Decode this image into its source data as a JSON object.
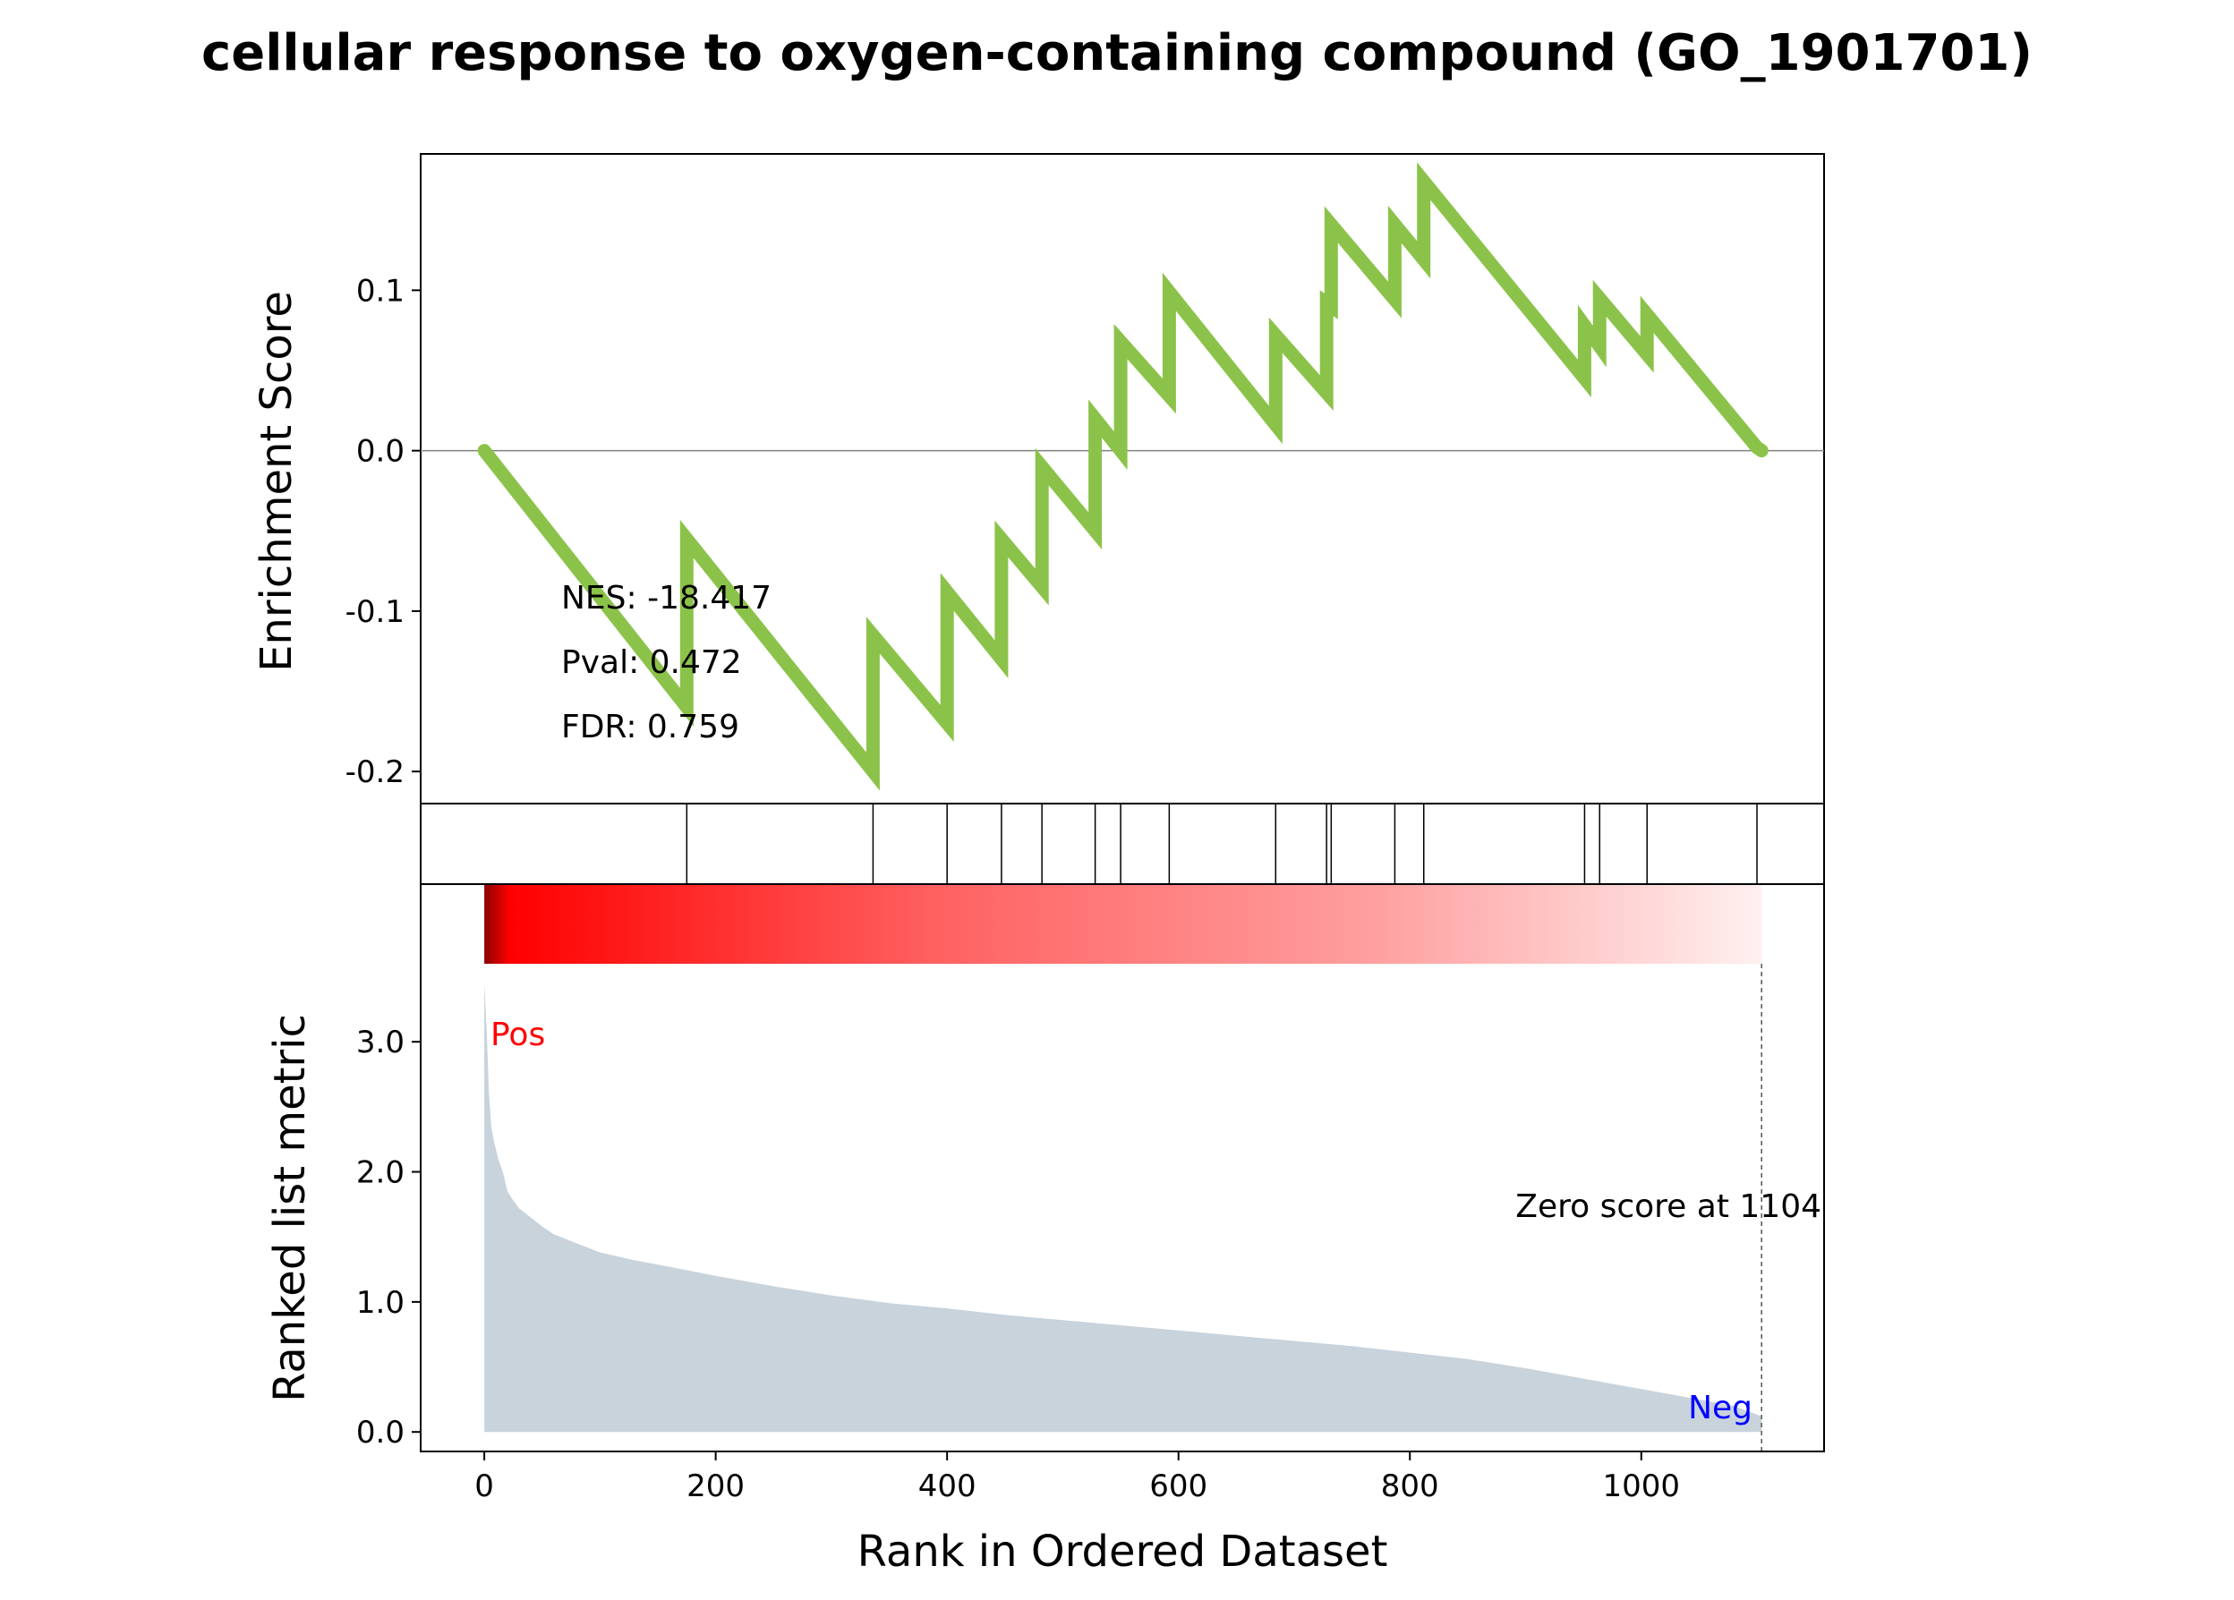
{
  "chart_data": {
    "type": "line",
    "title": "cellular response to oxygen-containing compound (GO_1901701)",
    "es_panel": {
      "ylabel": "Enrichment Score",
      "ylim": [
        -0.22,
        0.185
      ],
      "yticks": [
        -0.2,
        -0.1,
        0.0,
        0.1
      ],
      "ytick_labels": [
        "-0.2",
        "-0.1",
        "0.0",
        "0.1"
      ],
      "line_color": "#8bc34a",
      "zero_line": true,
      "stats": {
        "nes": "NES: -18.417",
        "pval": "Pval: 0.472",
        "fdr": "FDR: 0.759"
      },
      "series": [
        {
          "x": [
            0,
            175,
            175,
            336,
            336,
            400,
            400,
            447,
            447,
            482,
            482,
            528,
            528,
            550,
            550,
            592,
            592,
            684,
            684,
            728,
            728,
            732,
            732,
            787,
            787,
            812,
            812,
            951,
            951,
            964,
            964,
            1005,
            1005,
            1100,
            1104
          ],
          "y": [
            0.0,
            -0.16,
            -0.055,
            -0.2,
            -0.115,
            -0.17,
            -0.088,
            -0.13,
            -0.055,
            -0.085,
            -0.01,
            -0.05,
            0.02,
            0.0,
            0.068,
            0.034,
            0.099,
            0.016,
            0.072,
            0.036,
            0.092,
            0.09,
            0.141,
            0.094,
            0.141,
            0.119,
            0.168,
            0.045,
            0.078,
            0.065,
            0.095,
            0.06,
            0.085,
            0.002,
            0.0
          ]
        }
      ]
    },
    "hits": [
      175,
      336,
      400,
      447,
      482,
      528,
      550,
      592,
      684,
      728,
      732,
      787,
      812,
      951,
      964,
      1005,
      1100
    ],
    "rank_panel": {
      "ylabel": "Ranked list metric",
      "ylim": [
        -0.15,
        3.6
      ],
      "yticks": [
        0.0,
        1.0,
        2.0,
        3.0
      ],
      "ytick_labels": [
        "0.0",
        "1.0",
        "2.0",
        "3.0"
      ],
      "fill_color": "#c8d3dc",
      "pos_label": "Pos",
      "neg_label": "Neg",
      "zero_score_text": "Zero score at 1104",
      "zero_score_rank": 1104,
      "metric_profile": {
        "x": [
          0,
          2,
          4,
          6,
          8,
          12,
          16,
          20,
          25,
          30,
          40,
          50,
          60,
          80,
          100,
          130,
          160,
          200,
          250,
          300,
          350,
          400,
          450,
          500,
          550,
          600,
          650,
          700,
          750,
          800,
          850,
          900,
          950,
          1000,
          1050,
          1080,
          1104
        ],
        "y": [
          3.45,
          3.1,
          2.6,
          2.35,
          2.25,
          2.1,
          2.0,
          1.85,
          1.78,
          1.72,
          1.65,
          1.58,
          1.52,
          1.45,
          1.38,
          1.32,
          1.27,
          1.2,
          1.12,
          1.05,
          0.99,
          0.95,
          0.9,
          0.86,
          0.82,
          0.78,
          0.74,
          0.7,
          0.66,
          0.61,
          0.56,
          0.49,
          0.41,
          0.33,
          0.25,
          0.2,
          0.12
        ]
      }
    },
    "xaxis": {
      "xlabel": "Rank in Ordered Dataset",
      "xlim": [
        -55,
        1158
      ],
      "xticks": [
        0,
        200,
        400,
        600,
        800,
        1000
      ],
      "xtick_labels": [
        "0",
        "200",
        "400",
        "600",
        "800",
        "1000"
      ]
    }
  }
}
